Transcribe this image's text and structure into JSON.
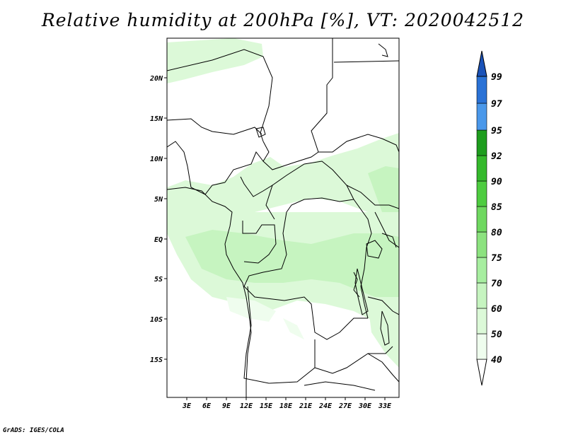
{
  "title": "Relative humidity at 200hPa [%], VT: 2020042512",
  "credit": "GrADS: IGES/COLA",
  "map": {
    "lat_labels": [
      "20N",
      "15N",
      "10N",
      "5N",
      "EQ",
      "5S",
      "10S",
      "15S"
    ],
    "lon_labels": [
      "3E",
      "6E",
      "9E",
      "12E",
      "15E",
      "18E",
      "21E",
      "24E",
      "27E",
      "30E",
      "33E"
    ]
  },
  "colorbar": {
    "levels": [
      "40",
      "50",
      "60",
      "70",
      "75",
      "80",
      "85",
      "90",
      "92",
      "95",
      "97",
      "99"
    ],
    "colors": [
      "#effdee",
      "#dcf9d8",
      "#c6f4c0",
      "#a7eea0",
      "#8ce27f",
      "#6fd860",
      "#4ecc40",
      "#35b92c",
      "#1e9d1e",
      "#0f8612",
      "#4a98ea",
      "#2a72d6",
      "#1a52b8"
    ]
  },
  "palette": {
    "light": "#effdee",
    "mid": "#dcf9d8",
    "dark": "#c6f4c0"
  }
}
